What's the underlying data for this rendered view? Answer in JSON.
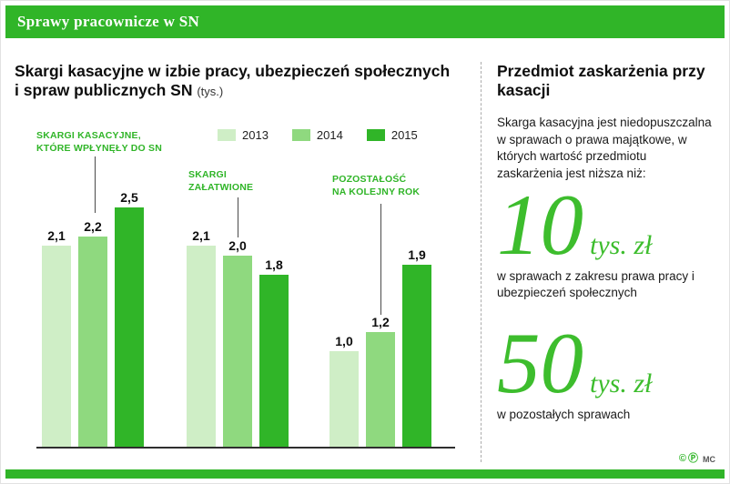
{
  "header": {
    "title": "Sprawy pracownicze w SN"
  },
  "chart": {
    "title": "Skargi kasacyjne w izbie pracy, ubezpieczeń społecznych i spraw publicznych SN",
    "unit": "(tys.)"
  },
  "chart_data": {
    "type": "bar",
    "title": "Skargi kasacyjne w izbie pracy, ubezpieczeń społecznych i spraw publicznych SN (tys.)",
    "categories": [
      "SKARGI KASACYJNE,\nKTÓRE WPŁYNĘŁY DO SN",
      "SKARGI\nZAŁATWIONE",
      "POZOSTAŁOŚĆ\nNA KOLEJNY ROK"
    ],
    "series": [
      {
        "name": "2013",
        "color": "#cfeec6",
        "values": [
          2.1,
          2.1,
          1.0
        ],
        "labels": [
          "2,1",
          "2,1",
          "1,0"
        ]
      },
      {
        "name": "2014",
        "color": "#8fd97f",
        "values": [
          2.2,
          2.0,
          1.2
        ],
        "labels": [
          "2,2",
          "2,0",
          "1,2"
        ]
      },
      {
        "name": "2015",
        "color": "#30b528",
        "values": [
          2.5,
          1.8,
          1.9
        ],
        "labels": [
          "2,5",
          "1,8",
          "1,9"
        ]
      }
    ],
    "ylim": [
      0,
      2.5
    ],
    "grid": false,
    "legend_position": "top-right"
  },
  "info": {
    "title": "Przedmiot zaskarżenia przy kasacji",
    "intro": "Skarga kasacyjna jest niedopuszczalna w sprawach o prawa majątkowe, w których wartość przedmiotu zaskarżenia jest niższa niż:",
    "thresholds": [
      {
        "value": "10",
        "unit": "tys. zł",
        "desc": "w sprawach z zakresu prawa pracy i ubezpieczeń społecznych"
      },
      {
        "value": "50",
        "unit": "tys. zł",
        "desc": "w pozostałych sprawach"
      }
    ]
  },
  "footer": {
    "copyright_glyph": "©",
    "p_glyph": "Ⓟ",
    "author": "MC"
  },
  "colors": {
    "green_dark": "#30b528",
    "green_mid": "#8fd97f",
    "green_light": "#cfeec6",
    "green_number": "#3dbd2d"
  }
}
